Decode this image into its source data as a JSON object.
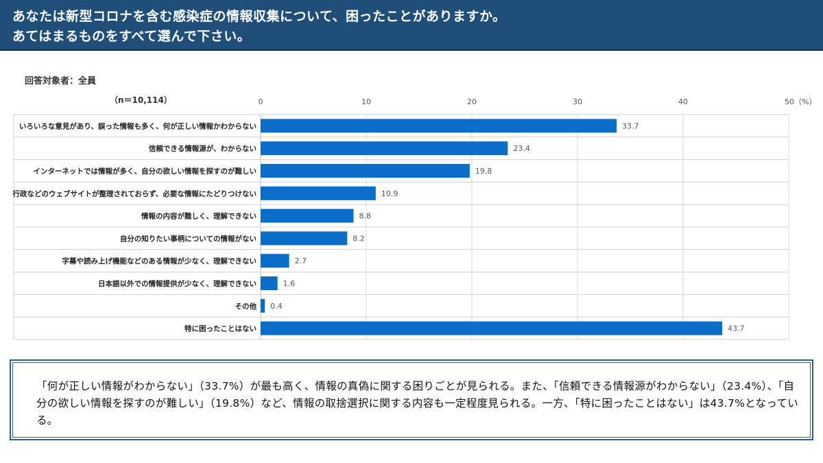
{
  "header": {
    "title_line1": "あなたは新型コロナを含む感染症の情報収集について、困ったことがありますか。",
    "title_line2": "あてはまるものをすべて選んで下さい。"
  },
  "respondent_label": "回答対象者：全員",
  "sample_size": "（n＝10,114）",
  "chart_data": {
    "type": "bar",
    "orientation": "horizontal",
    "categories": [
      "いろいろな意見があり、誤った情報も多く、何が正しい情報かわからない",
      "信頼できる情報源が、わからない",
      "インターネットでは情報が多く、自分の欲しい情報を探すのが難しい",
      "行政などのウェブサイトが整理されておらず、必要な情報にたどりつけない",
      "情報の内容が難しく、理解できない",
      "自分の知りたい事柄についての情報がない",
      "字幕や読み上げ機能などのある情報が少なく、理解できない",
      "日本語以外での情報提供が少なく、理解できない",
      "その他",
      "特に困ったことはない"
    ],
    "values": [
      33.7,
      23.4,
      19.8,
      10.9,
      8.8,
      8.2,
      2.7,
      1.6,
      0.4,
      43.7
    ],
    "value_labels": [
      "33.7",
      "23.4",
      "19.8",
      "10.9",
      "8.8",
      "8.2",
      "2.7",
      "1.6",
      "0.4",
      "43.7"
    ],
    "x_ticks": [
      "0",
      "10",
      "20",
      "30",
      "40",
      "50（%）"
    ],
    "xlim": [
      0,
      50
    ],
    "unit": "%",
    "bar_color": "#0a6ec8",
    "grid": true
  },
  "summary": {
    "text": "「何が正しい情報がわからない」（33.7%）が最も高く、情報の真偽に関する困りごとが見られる。また、「信頼できる情報源がわからない」（23.4%）、「自分の欲しい情報を探すのが難しい」（19.8%）など、情報の取捨選択に関する内容も一定程度見られる。一方、「特に困ったことはない」は43.7%となっている。"
  }
}
